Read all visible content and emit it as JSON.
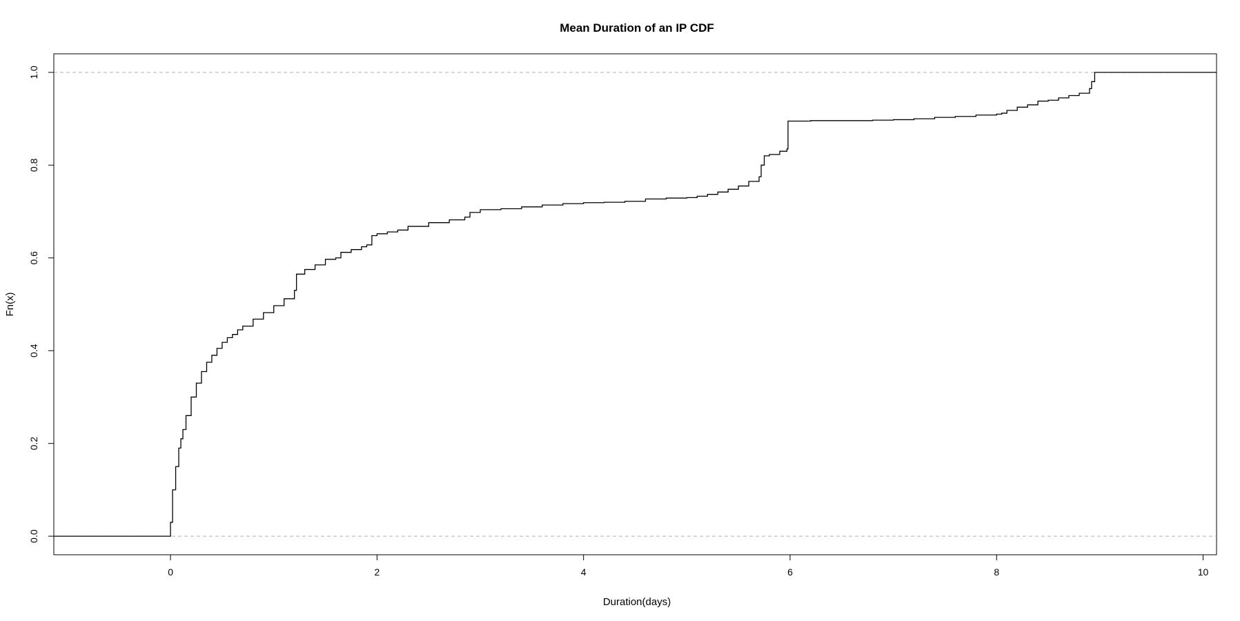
{
  "chart_data": {
    "type": "line",
    "title": "Mean Duration of an IP CDF",
    "xlabel": "Duration(days)",
    "ylabel": "Fn(x)",
    "xlim": [
      -1.13,
      10.13
    ],
    "ylim": [
      -0.04,
      1.04
    ],
    "x_ticks": [
      0,
      2,
      4,
      6,
      8,
      10
    ],
    "y_ticks": [
      0.0,
      0.2,
      0.4,
      0.6,
      0.8,
      1.0
    ],
    "x_tick_labels": [
      "0",
      "2",
      "4",
      "6",
      "8",
      "10"
    ],
    "y_tick_labels": [
      "0.0",
      "0.2",
      "0.4",
      "0.6",
      "0.8",
      "1.0"
    ],
    "reference_lines": [
      0.0,
      1.0
    ],
    "grid": false,
    "line_color": "#000000",
    "reference_color": "#b0b0b0",
    "series": [
      {
        "x": [
          -1.13,
          0.0,
          0.0,
          0.02,
          0.05,
          0.08,
          0.1,
          0.12,
          0.15,
          0.2,
          0.25,
          0.3,
          0.35,
          0.4,
          0.45,
          0.5,
          0.55,
          0.6,
          0.65,
          0.7,
          0.8,
          0.9,
          1.0,
          1.1,
          1.2,
          1.22,
          1.3,
          1.4,
          1.5,
          1.6,
          1.65,
          1.75,
          1.85,
          1.9,
          1.95,
          2.0,
          2.1,
          2.2,
          2.3,
          2.5,
          2.7,
          2.85,
          2.9,
          3.0,
          3.2,
          3.4,
          3.6,
          3.8,
          4.0,
          4.2,
          4.4,
          4.6,
          4.8,
          5.0,
          5.1,
          5.2,
          5.3,
          5.4,
          5.5,
          5.6,
          5.7,
          5.72,
          5.75,
          5.8,
          5.9,
          5.97,
          5.98,
          6.2,
          6.5,
          6.8,
          7.0,
          7.2,
          7.4,
          7.6,
          7.8,
          8.0,
          8.05,
          8.1,
          8.2,
          8.3,
          8.4,
          8.5,
          8.6,
          8.7,
          8.8,
          8.9,
          8.92,
          8.95,
          8.97,
          9.2,
          9.6,
          10.13
        ],
        "y": [
          0.0,
          0.0,
          0.03,
          0.1,
          0.15,
          0.19,
          0.21,
          0.23,
          0.26,
          0.3,
          0.33,
          0.355,
          0.375,
          0.39,
          0.405,
          0.418,
          0.428,
          0.435,
          0.445,
          0.453,
          0.468,
          0.482,
          0.497,
          0.512,
          0.53,
          0.565,
          0.575,
          0.585,
          0.597,
          0.6,
          0.612,
          0.618,
          0.624,
          0.628,
          0.648,
          0.652,
          0.656,
          0.66,
          0.668,
          0.676,
          0.682,
          0.688,
          0.698,
          0.704,
          0.706,
          0.71,
          0.714,
          0.717,
          0.719,
          0.72,
          0.722,
          0.727,
          0.729,
          0.73,
          0.733,
          0.737,
          0.742,
          0.748,
          0.755,
          0.765,
          0.775,
          0.8,
          0.82,
          0.823,
          0.83,
          0.835,
          0.895,
          0.896,
          0.896,
          0.897,
          0.898,
          0.9,
          0.903,
          0.905,
          0.908,
          0.91,
          0.912,
          0.918,
          0.925,
          0.93,
          0.938,
          0.94,
          0.945,
          0.95,
          0.955,
          0.965,
          0.98,
          1.0,
          1.0,
          1.0,
          1.0,
          1.0
        ]
      }
    ]
  }
}
